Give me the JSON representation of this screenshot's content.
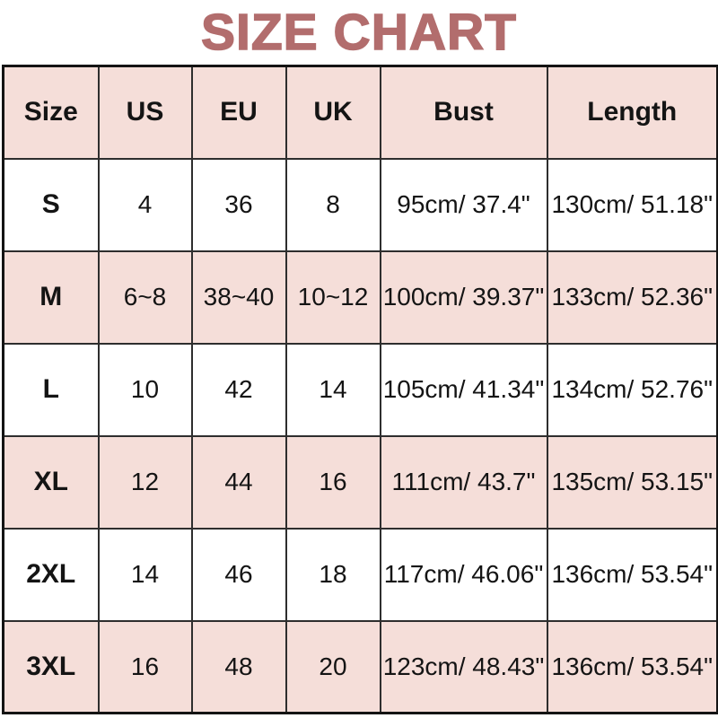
{
  "title": "SIZE CHART",
  "colors": {
    "title_text": "#b26d6d",
    "row_pink": "#f5ded9",
    "row_white": "#ffffff",
    "grid_line": "#2e2e2e",
    "cell_text": "#141414",
    "page_background": "#ffffff"
  },
  "chart_data": {
    "type": "table",
    "title": "SIZE CHART",
    "columns": [
      "Size",
      "US",
      "EU",
      "UK",
      "Bust",
      "Length"
    ],
    "rows": [
      [
        "S",
        "4",
        "36",
        "8",
        "95cm/ 37.4\"",
        "130cm/ 51.18\""
      ],
      [
        "M",
        "6~8",
        "38~40",
        "10~12",
        "100cm/ 39.37\"",
        "133cm/ 52.36\""
      ],
      [
        "L",
        "10",
        "42",
        "14",
        "105cm/ 41.34\"",
        "134cm/ 52.76\""
      ],
      [
        "XL",
        "12",
        "44",
        "16",
        "111cm/ 43.7\"",
        "135cm/ 53.15\""
      ],
      [
        "2XL",
        "14",
        "46",
        "18",
        "117cm/ 46.06\"",
        "136cm/ 53.54\""
      ],
      [
        "3XL",
        "16",
        "48",
        "20",
        "123cm/ 48.43\"",
        "136cm/ 53.54\""
      ]
    ],
    "layout_hints": {
      "header_background": "#f5ded9",
      "row_striping": [
        "white",
        "pink",
        "white",
        "pink",
        "white",
        "pink"
      ],
      "grid": "on"
    }
  }
}
